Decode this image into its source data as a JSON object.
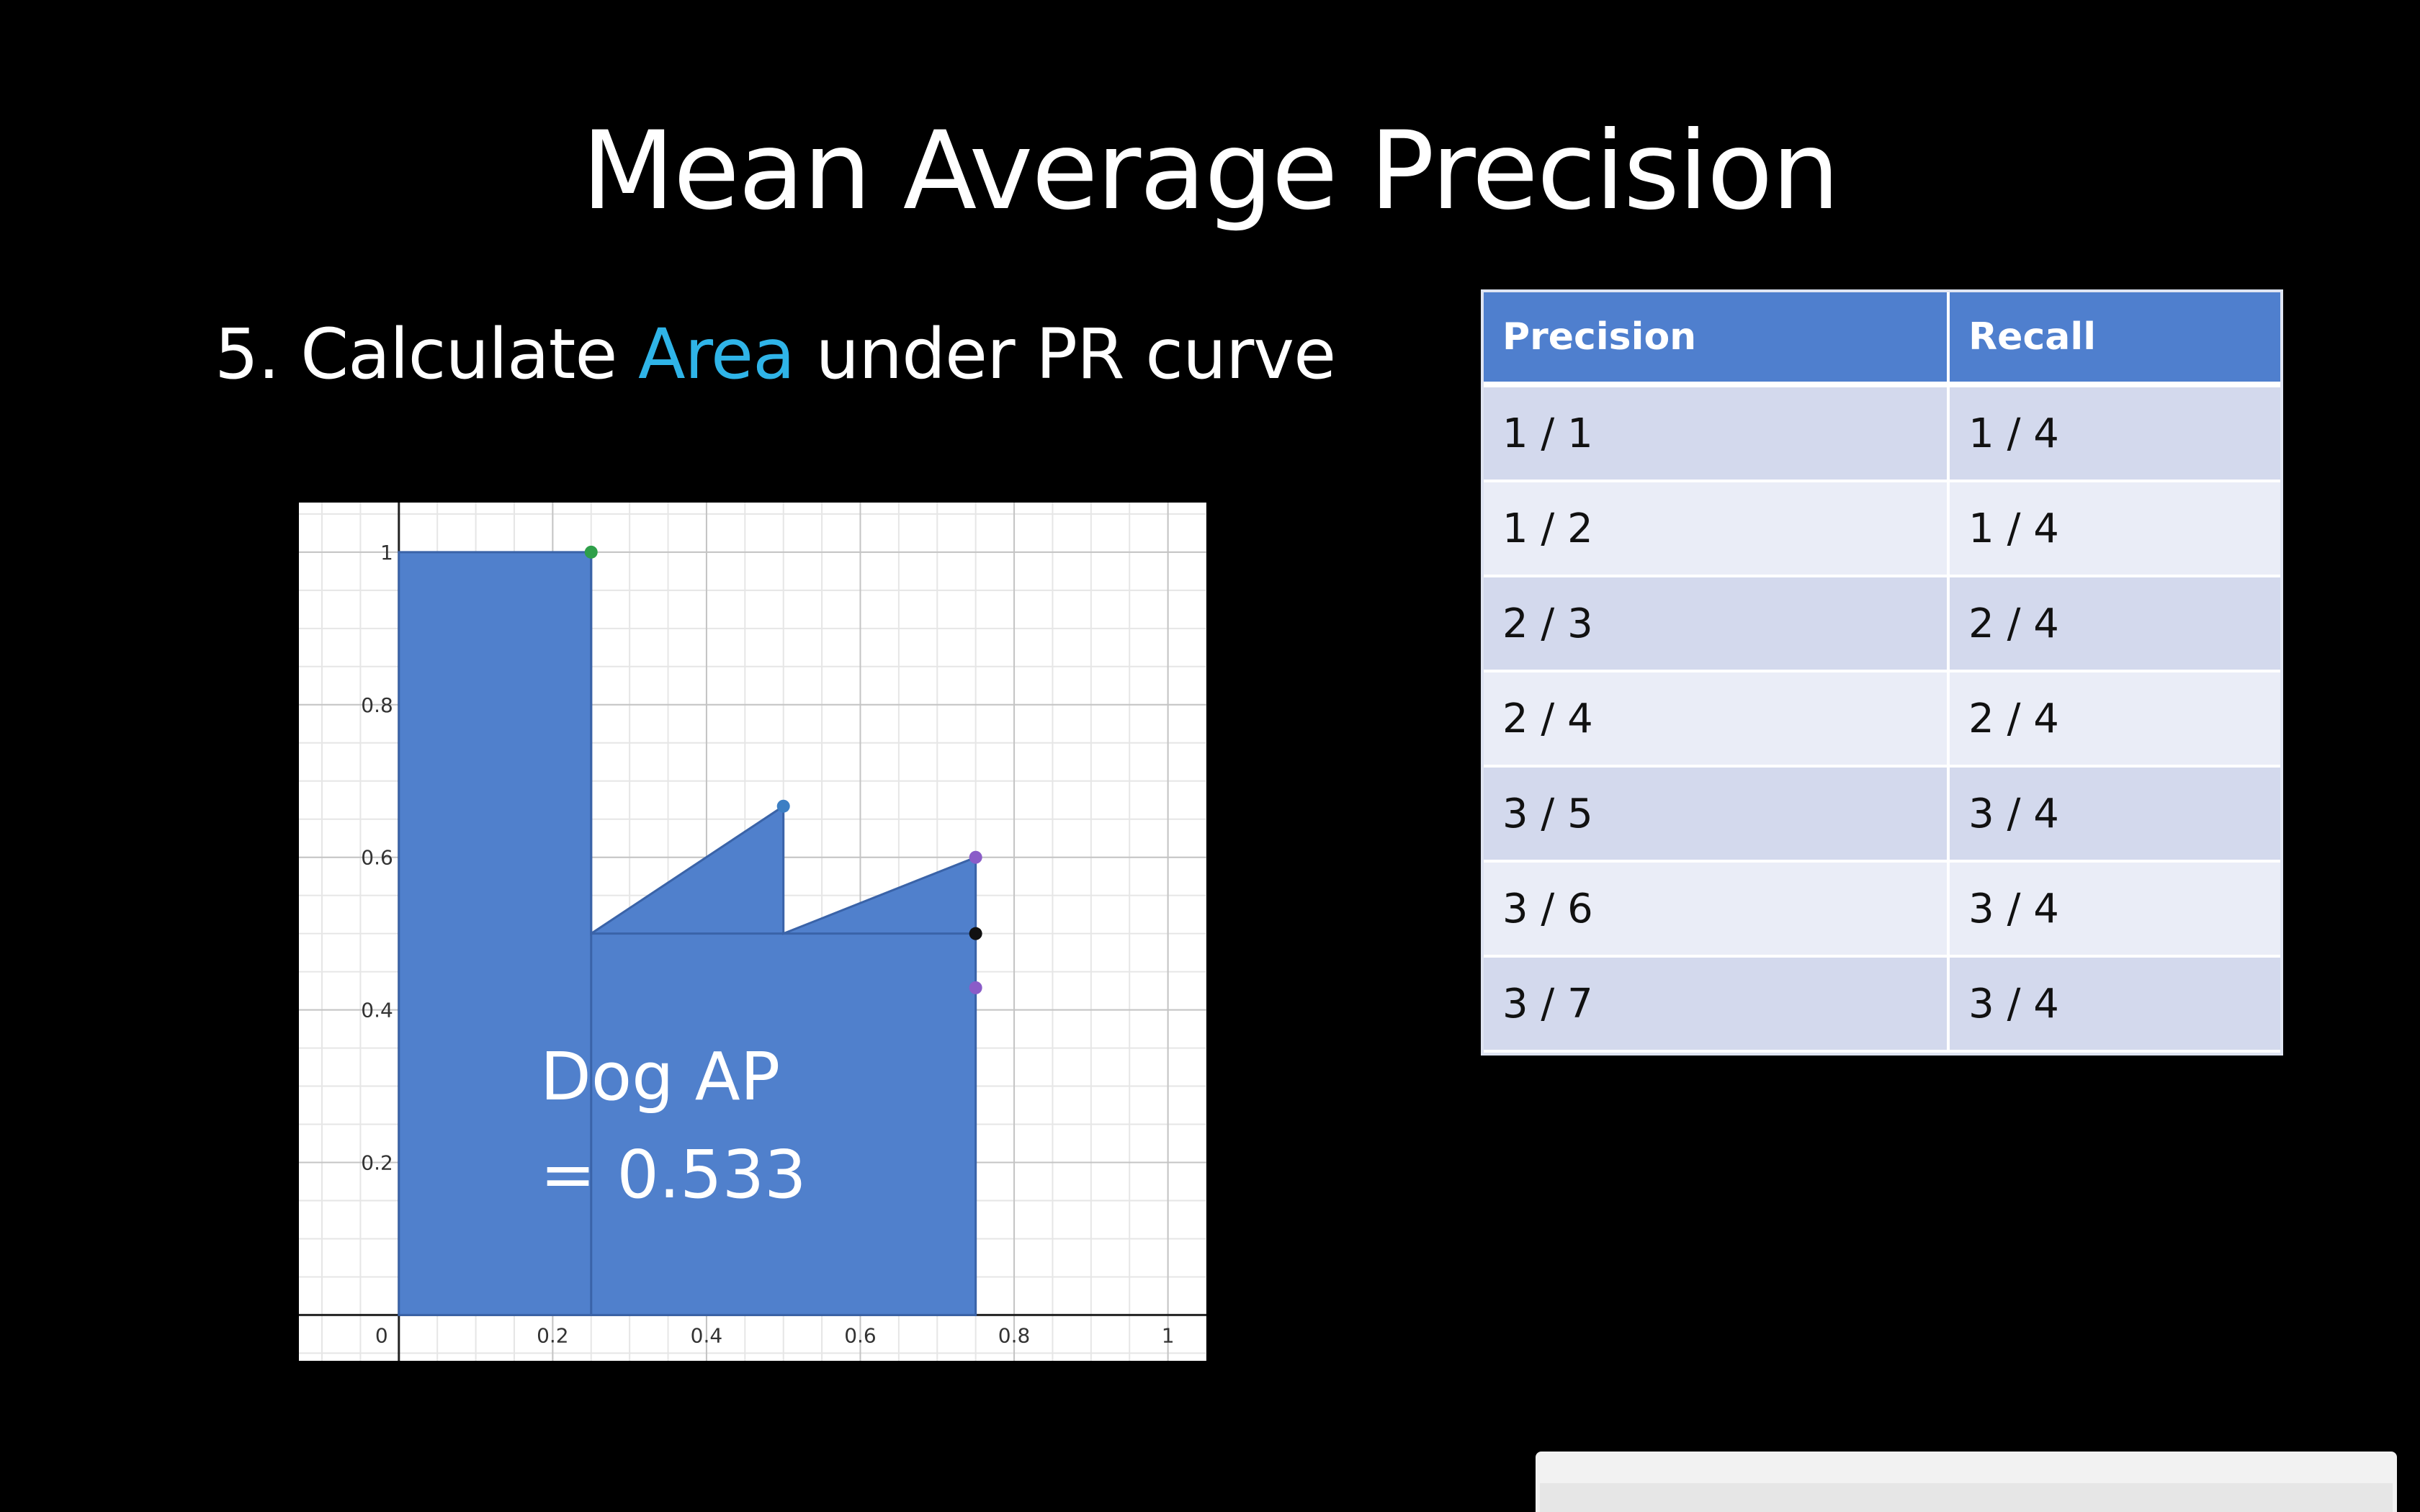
{
  "slide": {
    "title": "Mean Average Precision",
    "step": {
      "prefix": "5. Calculate ",
      "highlight": "Area",
      "suffix": " under PR curve"
    },
    "colors": {
      "background": "#000000",
      "accent": "#2fb4e8",
      "fill": "#5080cc",
      "table_header": "#4f7fce"
    }
  },
  "chart_data": {
    "type": "area",
    "x": [
      0,
      0,
      0.25,
      0.25,
      0.5,
      0.5,
      0.75,
      0.75
    ],
    "y": [
      0,
      1,
      1,
      0.5,
      0.667,
      0.5,
      0.6,
      0
    ],
    "xlim": [
      -0.13,
      1.05
    ],
    "ylim": [
      -0.06,
      1.065
    ],
    "xticks": [
      0,
      0.2,
      0.4,
      0.6,
      0.8,
      1
    ],
    "xtick_labels": [
      "0",
      "0.2",
      "0.4",
      "0.6",
      "0.8",
      "1"
    ],
    "yticks": [
      0.2,
      0.4,
      0.6,
      0.8,
      1
    ],
    "ytick_labels": [
      "0.2",
      "0.4",
      "0.6",
      "0.8",
      "1"
    ],
    "points": [
      {
        "x": 0.25,
        "y": 1,
        "color": "#2e9f4a"
      },
      {
        "x": 0.5,
        "y": 0.667,
        "color": "#3d7fc4"
      },
      {
        "x": 0.75,
        "y": 0.6,
        "color": "#8a5cc8"
      },
      {
        "x": 0.75,
        "y": 0.5,
        "color": "#111111"
      },
      {
        "x": 0.75,
        "y": 0.429,
        "color": "#8a5cc8"
      }
    ],
    "grid": true,
    "annotation_line1": "Dog AP",
    "annotation_line2": "= 0.533"
  },
  "table": {
    "headers": [
      "Precision",
      "Recall"
    ],
    "rows": [
      [
        "1 / 1",
        "1 / 4"
      ],
      [
        "1 / 2",
        "1 / 4"
      ],
      [
        "2 / 3",
        "2 / 4"
      ],
      [
        "2 / 4",
        "2 / 4"
      ],
      [
        "3 / 5",
        "3 / 4"
      ],
      [
        "3 / 6",
        "3 / 4"
      ],
      [
        "3 / 7",
        "3 / 4"
      ]
    ]
  }
}
